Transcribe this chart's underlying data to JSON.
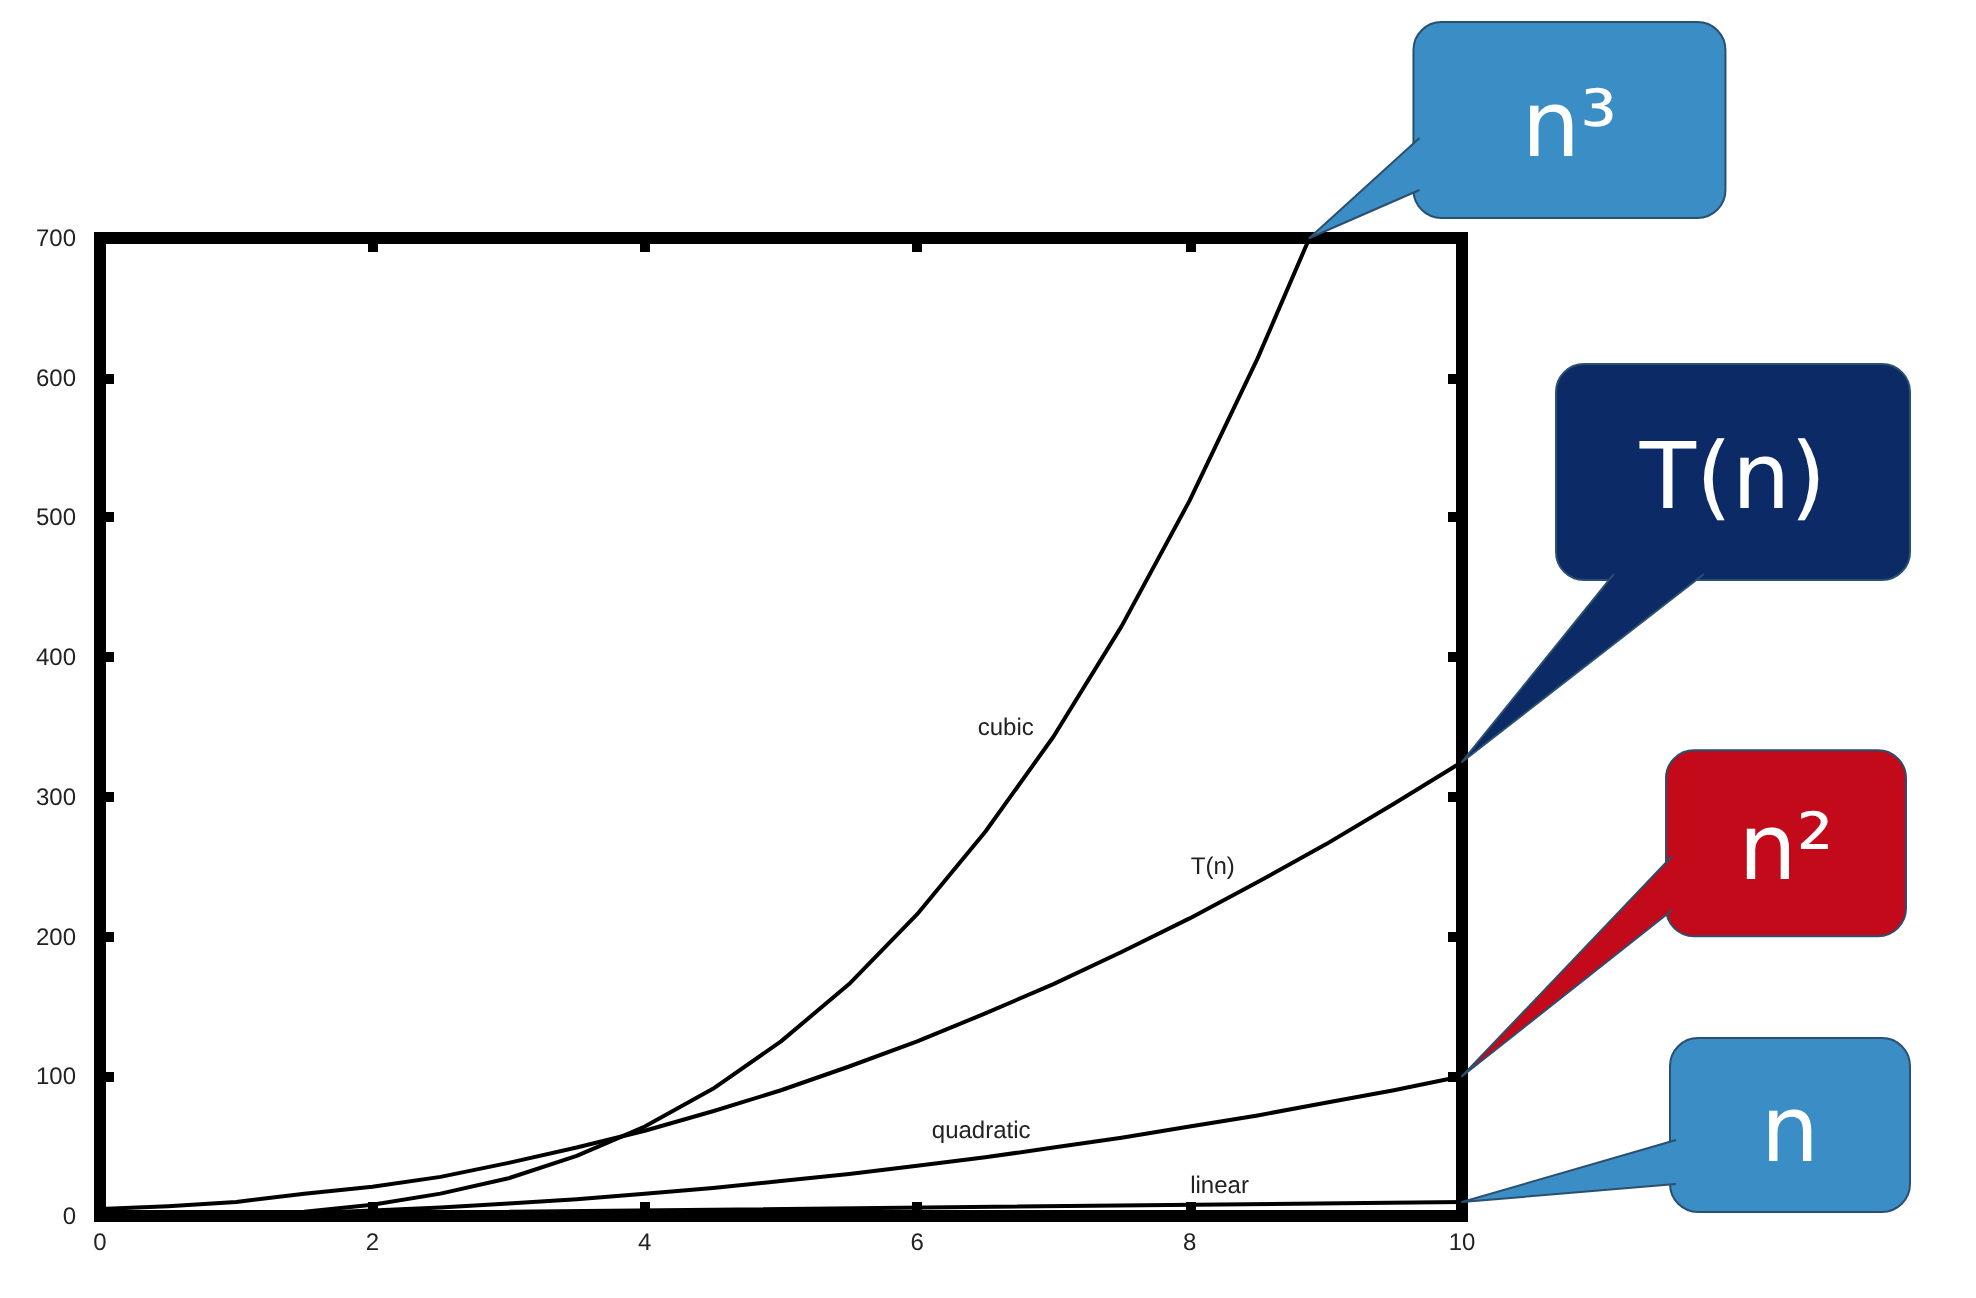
{
  "chart_data": {
    "type": "line",
    "x": [
      0,
      0.5,
      1,
      1.5,
      2,
      2.5,
      3,
      3.5,
      4,
      4.5,
      5,
      5.5,
      6,
      6.5,
      7,
      7.5,
      8,
      8.5,
      9,
      9.5,
      10
    ],
    "series": [
      {
        "name": "cubic",
        "color": "#000000",
        "x": [
          0,
          0.5,
          1,
          1.5,
          2,
          2.5,
          3,
          3.5,
          4,
          4.5,
          5,
          5.5,
          6,
          6.5,
          7,
          7.5,
          8,
          8.5,
          8.88
        ],
        "values": [
          0,
          0,
          1,
          3,
          8,
          16,
          27,
          43,
          64,
          91,
          125,
          166,
          216,
          275,
          343,
          422,
          512,
          614,
          700
        ]
      },
      {
        "name": "T(n)",
        "color": "#000000",
        "values": [
          5,
          7,
          10,
          16,
          21,
          28,
          38,
          49,
          61,
          75,
          90,
          107,
          125,
          145,
          166,
          189,
          213,
          239,
          266,
          295,
          325
        ]
      },
      {
        "name": "quadratic",
        "color": "#000000",
        "values": [
          0,
          0,
          1,
          2,
          4,
          6,
          9,
          12,
          16,
          20,
          25,
          30,
          36,
          42,
          49,
          56,
          64,
          72,
          81,
          90,
          100
        ]
      },
      {
        "name": "linear",
        "color": "#000000",
        "x": [
          0,
          10
        ],
        "values": [
          0,
          10
        ]
      }
    ],
    "xlim": [
      0,
      10
    ],
    "ylim": [
      0,
      700
    ],
    "xticks": [
      0,
      2,
      4,
      6,
      8,
      10
    ],
    "yticks": [
      0,
      100,
      200,
      300,
      400,
      500,
      600,
      700
    ],
    "grid": false,
    "annotations": [
      "n³",
      "T(n)",
      "n²",
      "n"
    ]
  }
}
